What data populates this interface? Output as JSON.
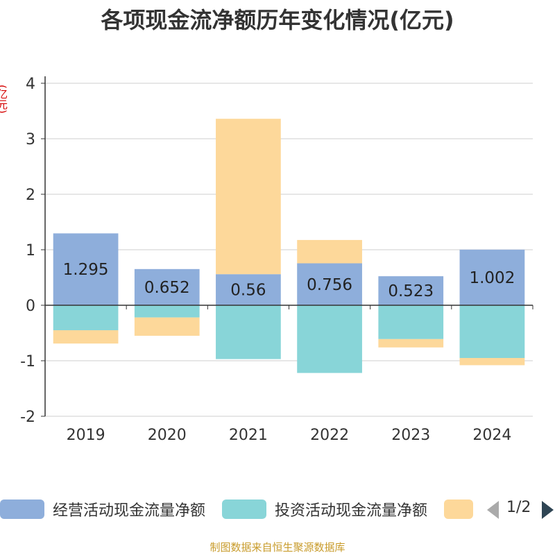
{
  "title": "各项现金流净额历年变化情况(亿元)",
  "y_unit": "(亿元)",
  "legend": {
    "items": [
      {
        "label": "经营活动现金流量净额",
        "color": "#8eaedb"
      },
      {
        "label": "投资活动现金流量净额",
        "color": "#88d5d8"
      },
      {
        "label": "",
        "color": "#fdd89a"
      }
    ],
    "pager_text": "1/2"
  },
  "footer": "制图数据来自恒生聚源数据库",
  "chart_data": {
    "type": "bar",
    "stacked": true,
    "categories": [
      "2019",
      "2020",
      "2021",
      "2022",
      "2023",
      "2024"
    ],
    "series": [
      {
        "name": "经营活动现金流量净额",
        "color": "#8eaedb",
        "values": [
          1.295,
          0.652,
          0.56,
          0.756,
          0.523,
          1.002
        ],
        "labels": true
      },
      {
        "name": "投资活动现金流量净额",
        "color": "#88d5d8",
        "values": [
          -0.45,
          -0.22,
          -0.97,
          -1.22,
          -0.61,
          -0.95
        ],
        "labels": false
      },
      {
        "name": "",
        "color": "#fdd89a",
        "values": [
          -0.24,
          -0.33,
          2.8,
          0.42,
          -0.15,
          -0.13
        ],
        "labels": false
      }
    ],
    "ylim": [
      -2,
      4
    ],
    "yticks": [
      -2,
      -1,
      0,
      1,
      2,
      3,
      4
    ],
    "grid": true,
    "legend_position": "bottom"
  }
}
